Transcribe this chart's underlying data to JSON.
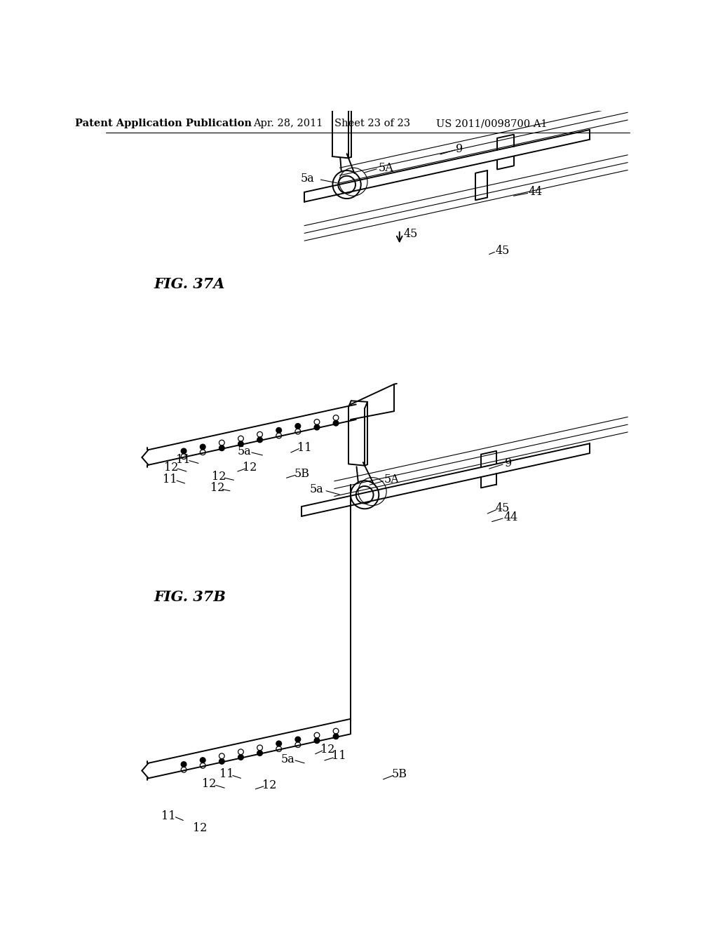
{
  "background_color": "#ffffff",
  "header_text": "Patent Application Publication",
  "header_date": "Apr. 28, 2011",
  "header_sheet": "Sheet 23 of 23",
  "header_patent": "US 2011/0098700 A1",
  "header_fontsize": 10.5,
  "fig_label_37A": "FIG. 37A",
  "fig_label_37B": "FIG. 37B",
  "fig_label_fontsize": 15,
  "line_color": "#000000",
  "line_width": 1.4,
  "annotation_fontsize": 11.5
}
